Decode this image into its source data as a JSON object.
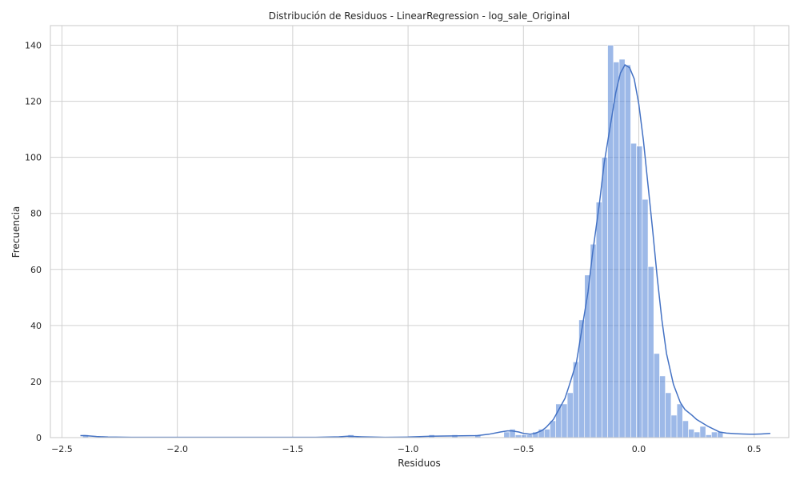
{
  "chart_data": {
    "type": "bar",
    "subtype": "histogram-with-kde",
    "title": "Distribución de Residuos - LinearRegression - log_sale_Original",
    "xlabel": "Residuos",
    "ylabel": "Frecuencia",
    "xlim": [
      -2.55,
      0.65
    ],
    "ylim": [
      0,
      147
    ],
    "xticks": [
      -2.5,
      -2.0,
      -1.5,
      -1.0,
      -0.5,
      0.0,
      0.5
    ],
    "xtick_labels": [
      "−2.5",
      "−2.0",
      "−1.5",
      "−1.0",
      "−0.5",
      "0.0",
      "0.5"
    ],
    "yticks": [
      0,
      20,
      40,
      60,
      80,
      100,
      120,
      140
    ],
    "ytick_labels": [
      "0",
      "20",
      "40",
      "60",
      "80",
      "100",
      "120",
      "140"
    ],
    "grid": true,
    "legend": "none",
    "bar_color": "#4c7fd6",
    "bar_opacity": 0.55,
    "kde_color": "#4472c4",
    "bin_width": 0.025,
    "bins": [
      {
        "x0": -2.41,
        "count": 1
      },
      {
        "x0": -1.26,
        "count": 1
      },
      {
        "x0": -0.91,
        "count": 1
      },
      {
        "x0": -0.81,
        "count": 1
      },
      {
        "x0": -0.71,
        "count": 1
      },
      {
        "x0": -0.585,
        "count": 2
      },
      {
        "x0": -0.56,
        "count": 3
      },
      {
        "x0": -0.535,
        "count": 1
      },
      {
        "x0": -0.51,
        "count": 1
      },
      {
        "x0": -0.485,
        "count": 1
      },
      {
        "x0": -0.46,
        "count": 2
      },
      {
        "x0": -0.435,
        "count": 3
      },
      {
        "x0": -0.41,
        "count": 3
      },
      {
        "x0": -0.385,
        "count": 6
      },
      {
        "x0": -0.36,
        "count": 12
      },
      {
        "x0": -0.335,
        "count": 12
      },
      {
        "x0": -0.31,
        "count": 16
      },
      {
        "x0": -0.285,
        "count": 27
      },
      {
        "x0": -0.26,
        "count": 42
      },
      {
        "x0": -0.235,
        "count": 58
      },
      {
        "x0": -0.21,
        "count": 69
      },
      {
        "x0": -0.185,
        "count": 84
      },
      {
        "x0": -0.16,
        "count": 100
      },
      {
        "x0": -0.135,
        "count": 140
      },
      {
        "x0": -0.11,
        "count": 134
      },
      {
        "x0": -0.085,
        "count": 135
      },
      {
        "x0": -0.06,
        "count": 133
      },
      {
        "x0": -0.035,
        "count": 105
      },
      {
        "x0": -0.01,
        "count": 104
      },
      {
        "x0": 0.015,
        "count": 85
      },
      {
        "x0": 0.04,
        "count": 61
      },
      {
        "x0": 0.065,
        "count": 30
      },
      {
        "x0": 0.09,
        "count": 22
      },
      {
        "x0": 0.115,
        "count": 16
      },
      {
        "x0": 0.14,
        "count": 8
      },
      {
        "x0": 0.165,
        "count": 12
      },
      {
        "x0": 0.19,
        "count": 6
      },
      {
        "x0": 0.215,
        "count": 3
      },
      {
        "x0": 0.24,
        "count": 2
      },
      {
        "x0": 0.265,
        "count": 4
      },
      {
        "x0": 0.29,
        "count": 1
      },
      {
        "x0": 0.315,
        "count": 2
      },
      {
        "x0": 0.34,
        "count": 2
      }
    ],
    "kde": {
      "x": [
        -2.42,
        -2.4,
        -2.35,
        -2.3,
        -2.2,
        -2.0,
        -1.8,
        -1.6,
        -1.4,
        -1.3,
        -1.26,
        -1.2,
        -1.1,
        -1.0,
        -0.9,
        -0.8,
        -0.7,
        -0.65,
        -0.6,
        -0.57,
        -0.55,
        -0.52,
        -0.5,
        -0.47,
        -0.45,
        -0.42,
        -0.4,
        -0.37,
        -0.35,
        -0.32,
        -0.3,
        -0.27,
        -0.25,
        -0.22,
        -0.2,
        -0.17,
        -0.15,
        -0.12,
        -0.1,
        -0.08,
        -0.06,
        -0.04,
        -0.02,
        0.0,
        0.02,
        0.04,
        0.06,
        0.08,
        0.1,
        0.12,
        0.15,
        0.18,
        0.2,
        0.23,
        0.25,
        0.28,
        0.3,
        0.33,
        0.35,
        0.38,
        0.4,
        0.42,
        0.45,
        0.48,
        0.5,
        0.53,
        0.55,
        0.57
      ],
      "y": [
        0.7,
        0.7,
        0.4,
        0.2,
        0.1,
        0.1,
        0.1,
        0.1,
        0.1,
        0.3,
        0.5,
        0.3,
        0.1,
        0.2,
        0.5,
        0.6,
        0.7,
        1.2,
        2.0,
        2.4,
        2.4,
        2.0,
        1.5,
        1.2,
        1.5,
        2.5,
        3.8,
        6.5,
        9.5,
        14.0,
        19.0,
        27.0,
        37.0,
        52.0,
        66.0,
        84.0,
        98.0,
        113.0,
        123.0,
        130.0,
        133.0,
        132.0,
        128.0,
        119.0,
        106.0,
        90.0,
        74.0,
        57.0,
        42.0,
        30.0,
        19.0,
        12.5,
        10.0,
        8.0,
        6.5,
        5.0,
        4.0,
        2.8,
        2.0,
        1.6,
        1.5,
        1.4,
        1.3,
        1.2,
        1.2,
        1.3,
        1.4,
        1.5
      ]
    }
  }
}
